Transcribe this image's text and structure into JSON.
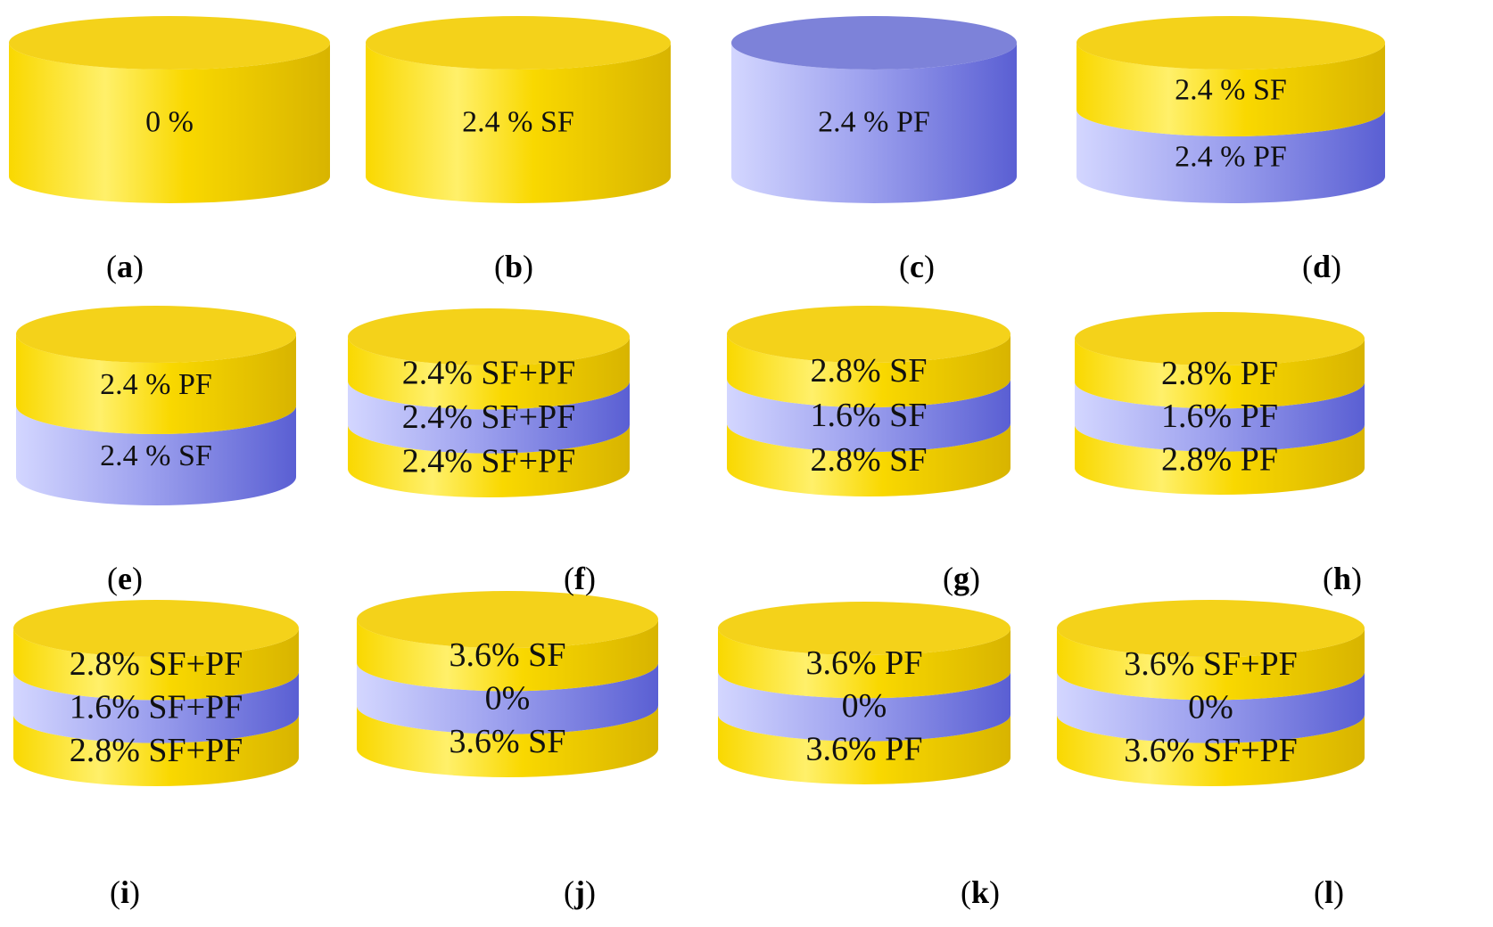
{
  "colors": {
    "yellow_light": "#fff06a",
    "yellow": "#f9d800",
    "yellow_dark": "#d8b400",
    "yellow_top": "#f4d21a",
    "blue_light": "#d3d6ff",
    "blue": "#9fa3ef",
    "blue_dark": "#5a5fd3",
    "blue_top": "#7d82d9",
    "text": "#111111"
  },
  "panels": [
    {
      "id": "a",
      "top_color": "yellow",
      "layers": [
        {
          "color": "yellow",
          "label": "0 %"
        }
      ]
    },
    {
      "id": "b",
      "top_color": "yellow",
      "layers": [
        {
          "color": "yellow",
          "label": "2.4 % SF"
        }
      ]
    },
    {
      "id": "c",
      "top_color": "blue",
      "layers": [
        {
          "color": "blue",
          "label": "2.4 % PF"
        }
      ]
    },
    {
      "id": "d",
      "top_color": "yellow",
      "layers": [
        {
          "color": "yellow",
          "label": "2.4 % SF"
        },
        {
          "color": "blue",
          "label": "2.4 % PF"
        }
      ]
    },
    {
      "id": "e",
      "top_color": "yellow",
      "layers": [
        {
          "color": "yellow",
          "label": "2.4 % PF"
        },
        {
          "color": "blue",
          "label": "2.4 % SF"
        }
      ]
    },
    {
      "id": "f",
      "top_color": "yellow",
      "layers": [
        {
          "color": "yellow",
          "label": "2.4% SF+PF"
        },
        {
          "color": "blue",
          "label": "2.4% SF+PF"
        },
        {
          "color": "yellow",
          "label": "2.4% SF+PF"
        }
      ]
    },
    {
      "id": "g",
      "top_color": "yellow",
      "layers": [
        {
          "color": "yellow",
          "label": "2.8% SF"
        },
        {
          "color": "blue",
          "label": "1.6% SF"
        },
        {
          "color": "yellow",
          "label": "2.8% SF"
        }
      ]
    },
    {
      "id": "h",
      "top_color": "yellow",
      "layers": [
        {
          "color": "yellow",
          "label": "2.8% PF"
        },
        {
          "color": "blue",
          "label": "1.6% PF"
        },
        {
          "color": "yellow",
          "label": "2.8% PF"
        }
      ]
    },
    {
      "id": "i",
      "top_color": "yellow",
      "layers": [
        {
          "color": "yellow",
          "label": "2.8% SF+PF"
        },
        {
          "color": "blue",
          "label": "1.6% SF+PF"
        },
        {
          "color": "yellow",
          "label": "2.8% SF+PF"
        }
      ]
    },
    {
      "id": "j",
      "top_color": "yellow",
      "layers": [
        {
          "color": "yellow",
          "label": "3.6% SF"
        },
        {
          "color": "blue",
          "label": "0%"
        },
        {
          "color": "yellow",
          "label": "3.6% SF"
        }
      ]
    },
    {
      "id": "k",
      "top_color": "yellow",
      "layers": [
        {
          "color": "yellow",
          "label": "3.6% PF"
        },
        {
          "color": "blue",
          "label": "0%"
        },
        {
          "color": "yellow",
          "label": "3.6% PF"
        }
      ]
    },
    {
      "id": "l",
      "top_color": "yellow",
      "layers": [
        {
          "color": "yellow",
          "label": "3.6% SF+PF"
        },
        {
          "color": "blue",
          "label": "0%"
        },
        {
          "color": "yellow",
          "label": "3.6% SF+PF"
        }
      ]
    }
  ],
  "labels": {
    "a": "a",
    "b": "b",
    "c": "c",
    "d": "d",
    "e": "e",
    "f": "f",
    "g": "g",
    "h": "h",
    "i": "i",
    "j": "j",
    "k": "k",
    "l": "l"
  }
}
